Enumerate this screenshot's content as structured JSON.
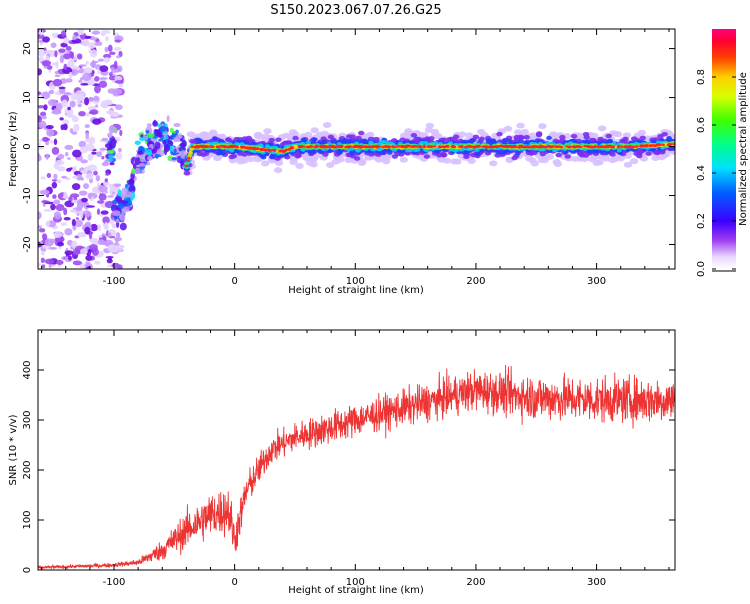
{
  "page_title": "S150.2023.067.07.26.G25",
  "colors": {
    "line": "#ee3333",
    "frame": "#000000"
  },
  "colorbar": {
    "label": "Normalized spectral amplitude",
    "ticks": [
      "0.0",
      "0.2",
      "0.4",
      "0.6",
      "0.8"
    ],
    "range": [
      0,
      1
    ]
  },
  "chart_data": [
    {
      "type": "heatmap",
      "title": "S150.2023.067.07.26.G25",
      "xlabel": "Height of straight line (km)",
      "ylabel": "Frequency (Hz)",
      "xlim": [
        -163,
        365
      ],
      "ylim": [
        -25,
        24
      ],
      "xticks": [
        -100,
        0,
        100,
        200,
        300
      ],
      "yticks": [
        -20,
        -10,
        0,
        10,
        20
      ],
      "ridge": {
        "description_points_km_hz": [
          [
            -100,
            -12
          ],
          [
            -90,
            -12
          ],
          [
            -80,
            -3
          ],
          [
            -70,
            0
          ],
          [
            -60,
            2
          ],
          [
            -50,
            1
          ],
          [
            -45,
            0
          ],
          [
            -40,
            -4
          ],
          [
            -35,
            0
          ],
          [
            0,
            0
          ],
          [
            40,
            -1
          ],
          [
            50,
            0
          ],
          [
            100,
            0
          ],
          [
            200,
            0
          ],
          [
            260,
            0
          ],
          [
            300,
            0
          ],
          [
            330,
            0
          ],
          [
            365,
            0.5
          ]
        ]
      },
      "noise_region_km": [
        -163,
        -100
      ]
    },
    {
      "type": "line",
      "xlabel": "Height of straight line (km)",
      "ylabel": "SNR (10 * v/v)",
      "xlim": [
        -163,
        365
      ],
      "ylim": [
        0,
        480
      ],
      "xticks": [
        -100,
        0,
        100,
        200,
        300
      ],
      "yticks": [
        0,
        100,
        200,
        300,
        400
      ],
      "trend_x": [
        -163,
        -120,
        -100,
        -80,
        -60,
        -40,
        -20,
        -5,
        0,
        10,
        30,
        50,
        80,
        100,
        150,
        200,
        250,
        300,
        365
      ],
      "trend_y": [
        5,
        8,
        10,
        15,
        40,
        80,
        110,
        120,
        60,
        160,
        240,
        265,
        285,
        300,
        330,
        360,
        345,
        340,
        340
      ],
      "noise_y": [
        3,
        5,
        5,
        8,
        25,
        45,
        55,
        60,
        50,
        40,
        35,
        35,
        40,
        40,
        45,
        50,
        55,
        55,
        55
      ]
    }
  ]
}
